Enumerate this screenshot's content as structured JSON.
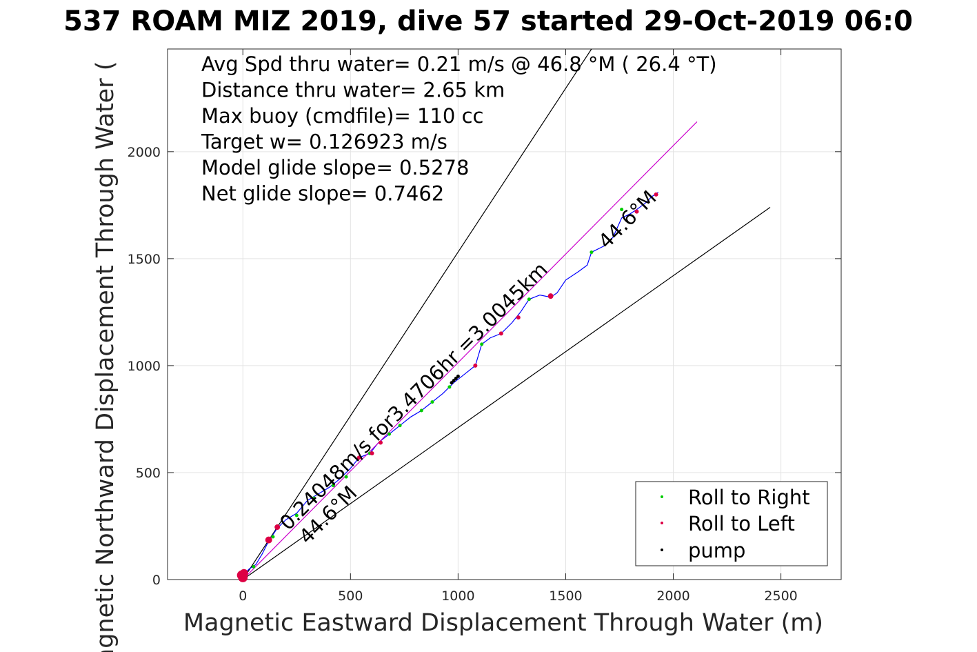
{
  "chart_data": {
    "type": "line",
    "title": "537 ROAM MIZ 2019, dive 57 started 29-Oct-2019 06:0",
    "xlabel": "Magnetic Eastward Displacement Through Water (m)",
    "ylabel": "Magnetic Northward Displacement Through Water (",
    "xlim": [
      -350,
      2780
    ],
    "ylim": [
      0,
      2480
    ],
    "xticks": [
      0,
      500,
      1000,
      1500,
      2000,
      2500
    ],
    "yticks": [
      0,
      500,
      1000,
      1500,
      2000
    ],
    "xtick_labels": [
      "0",
      "500",
      "1000",
      "1500",
      "2000",
      "2500"
    ],
    "ytick_labels": [
      "0",
      "500",
      "1000",
      "1500",
      "2000"
    ],
    "grid": true,
    "stats_text": [
      "Avg Spd thru water=  0.21 m/s @  46.8 °M ( 26.4 °T)",
      "Distance thru water=  2.65 km",
      "Max buoy (cmdfile)= 110 cc",
      "Target w= 0.126923 m/s",
      "Model glide slope= 0.5278",
      "Net glide slope= 0.7462"
    ],
    "annotations": {
      "segment_label": "0.24048m/s for3.4706hr =3.0045km",
      "upper_heading": "44.6°M",
      "lower_heading": "44.6°M"
    },
    "series": [
      {
        "name": "track",
        "color": "#0000ff",
        "x": [
          0,
          30,
          60,
          90,
          120,
          160,
          200,
          250,
          300,
          350,
          400,
          450,
          500,
          540,
          590,
          630,
          680,
          730,
          780,
          830,
          880,
          930,
          980,
          1030,
          1080,
          1110,
          1150,
          1200,
          1250,
          1290,
          1330,
          1380,
          1430,
          1460,
          1500,
          1560,
          1600,
          1620,
          1680,
          1720,
          1760,
          1800,
          1830,
          1870,
          1900,
          1930
        ],
        "y": [
          20,
          50,
          70,
          120,
          180,
          240,
          280,
          310,
          370,
          400,
          430,
          470,
          520,
          570,
          590,
          640,
          680,
          720,
          760,
          790,
          830,
          870,
          920,
          960,
          1000,
          1100,
          1130,
          1150,
          1200,
          1250,
          1310,
          1330,
          1320,
          1340,
          1400,
          1440,
          1470,
          1530,
          1560,
          1600,
          1690,
          1710,
          1730,
          1760,
          1790,
          1810
        ]
      },
      {
        "name": "model",
        "color": "#cc00cc",
        "x": [
          0,
          2110
        ],
        "y": [
          0,
          2140
        ]
      }
    ],
    "reference_lines": [
      {
        "color": "#000000",
        "x": [
          0,
          1620
        ],
        "y": [
          0,
          2480
        ]
      },
      {
        "color": "#000000",
        "x": [
          0,
          2450
        ],
        "y": [
          0,
          1740
        ]
      }
    ],
    "markers": {
      "roll_right": {
        "name": "Roll to Right",
        "color": "#00cc00",
        "x": [
          50,
          140,
          250,
          330,
          420,
          480,
          590,
          680,
          730,
          830,
          880,
          960,
          1110,
          1330,
          1620,
          1760
        ],
        "y": [
          60,
          200,
          300,
          380,
          440,
          480,
          590,
          680,
          720,
          790,
          830,
          900,
          1100,
          1310,
          1530,
          1730
        ]
      },
      "roll_left": {
        "name": "Roll to Left",
        "color": "#dd0044",
        "x": [
          -5,
          0,
          5,
          120,
          160,
          540,
          600,
          640,
          1080,
          1200,
          1280,
          1430,
          1830,
          1920
        ],
        "y": [
          20,
          10,
          30,
          185,
          245,
          570,
          590,
          640,
          1000,
          1150,
          1225,
          1325,
          1720,
          1800
        ],
        "radius": [
          7,
          7,
          6,
          5,
          4,
          3,
          3,
          3,
          3,
          3,
          3,
          4,
          3,
          3
        ]
      },
      "pump": {
        "name": "pump",
        "color": "#000000",
        "x": [
          970,
          980,
          990,
          1000
        ],
        "y": [
          920,
          930,
          940,
          950
        ]
      }
    },
    "legend": {
      "placement": "bottom-right",
      "entries": [
        "Roll to Right",
        "Roll to Left",
        "pump"
      ]
    }
  }
}
